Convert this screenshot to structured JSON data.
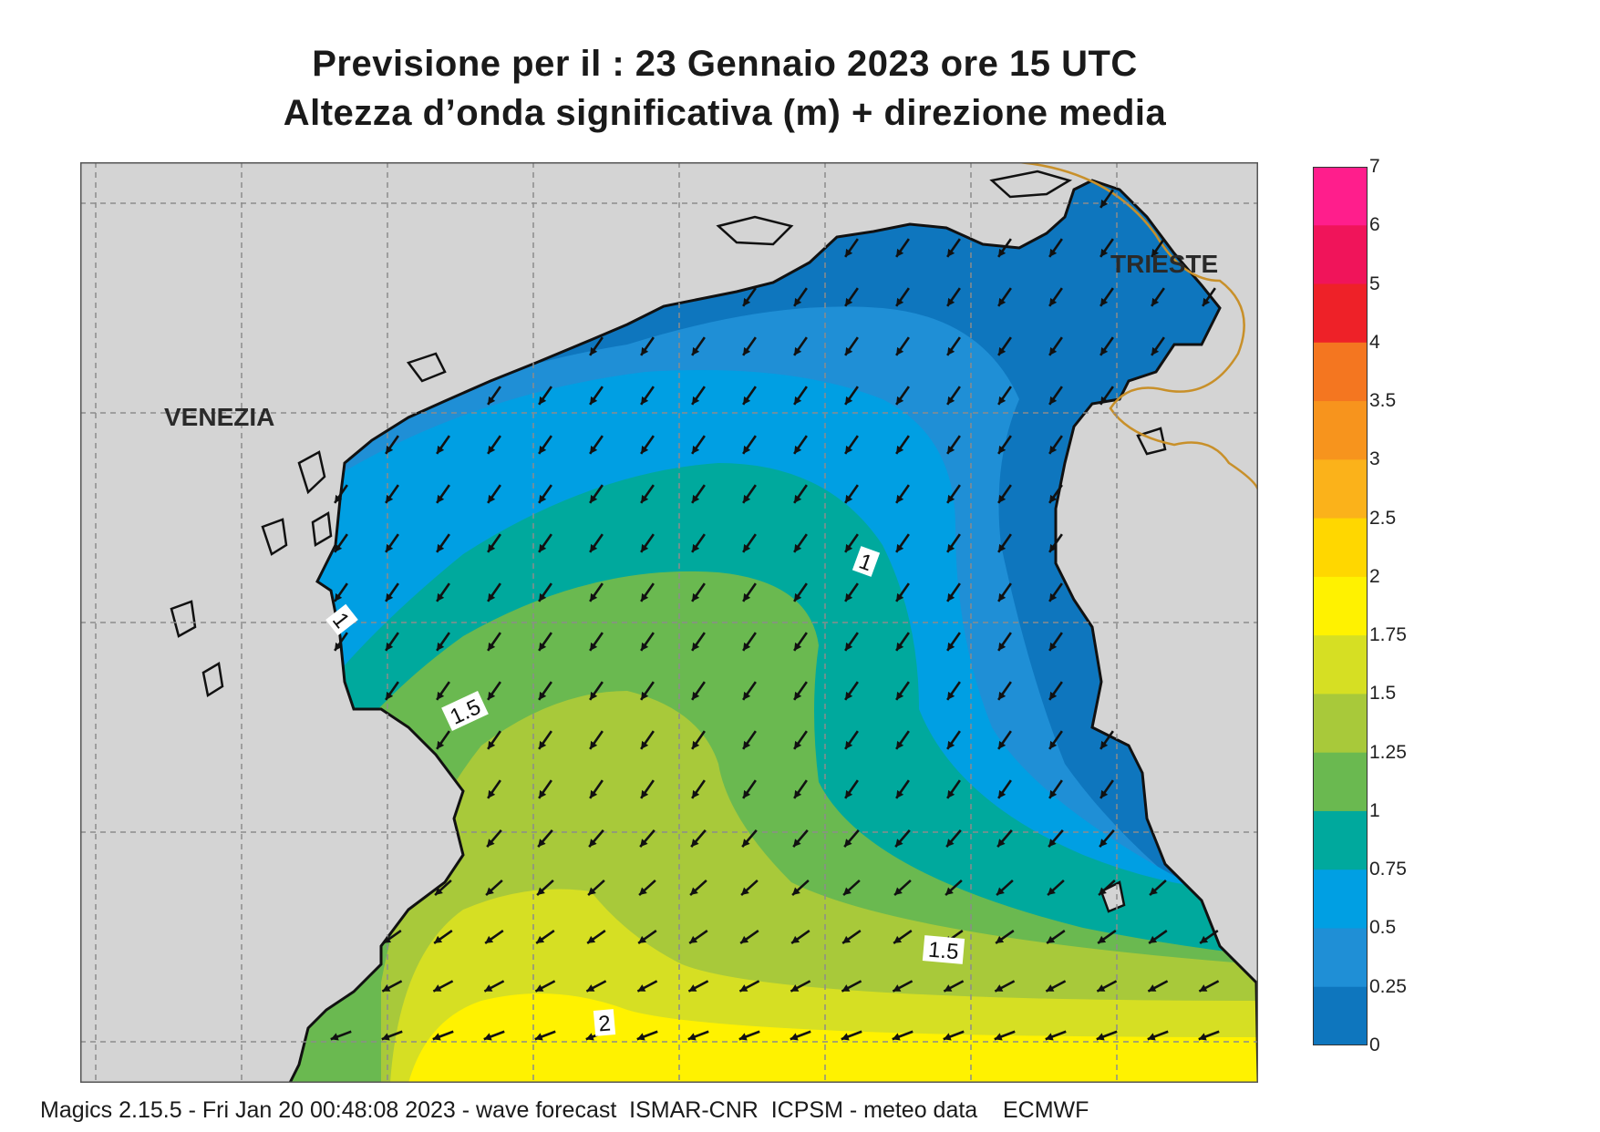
{
  "title": {
    "line1": "Previsione per il  :  23  Gennaio  2023   ore 15 UTC",
    "line2": "Altezza d’onda significativa (m) + direzione media"
  },
  "cities": [
    {
      "name": "VENEZIA"
    },
    {
      "name": "TRIESTE"
    }
  ],
  "contour_labels": [
    {
      "text": "1"
    },
    {
      "text": "1"
    },
    {
      "text": "1.5"
    },
    {
      "text": "1.5"
    },
    {
      "text": "2"
    }
  ],
  "legend": {
    "unit": "m",
    "levels": [
      {
        "label": "7",
        "color": "#ff1e8c"
      },
      {
        "label": "6",
        "color": "#f0145a"
      },
      {
        "label": "5",
        "color": "#ee2128"
      },
      {
        "label": "4",
        "color": "#f47620"
      },
      {
        "label": "3.5",
        "color": "#f7941d"
      },
      {
        "label": "3",
        "color": "#fbb21a"
      },
      {
        "label": "2.5",
        "color": "#ffd700"
      },
      {
        "label": "2",
        "color": "#fff200"
      },
      {
        "label": "1.75",
        "color": "#d6df23"
      },
      {
        "label": "1.5",
        "color": "#a8c93a"
      },
      {
        "label": "1.25",
        "color": "#6ab950"
      },
      {
        "label": "1",
        "color": "#00a99d"
      },
      {
        "label": "0.75",
        "color": "#009fe3"
      },
      {
        "label": "0.5",
        "color": "#1f8fd6"
      },
      {
        "label": "0.25",
        "color": "#0e76be"
      },
      {
        "label": "0",
        "color": "#0a5fab"
      }
    ]
  },
  "colors": {
    "land": "#d4d4d4",
    "coast": "#111111",
    "border": "#c8902a",
    "grid": "#8c8c8c"
  },
  "arrow_direction": "toward south-west",
  "footer": "Magics 2.15.5 - Fri Jan 20 00:48:08 2023 - wave forecast  ISMAR-CNR  ICPSM - meteo data    ECMWF"
}
